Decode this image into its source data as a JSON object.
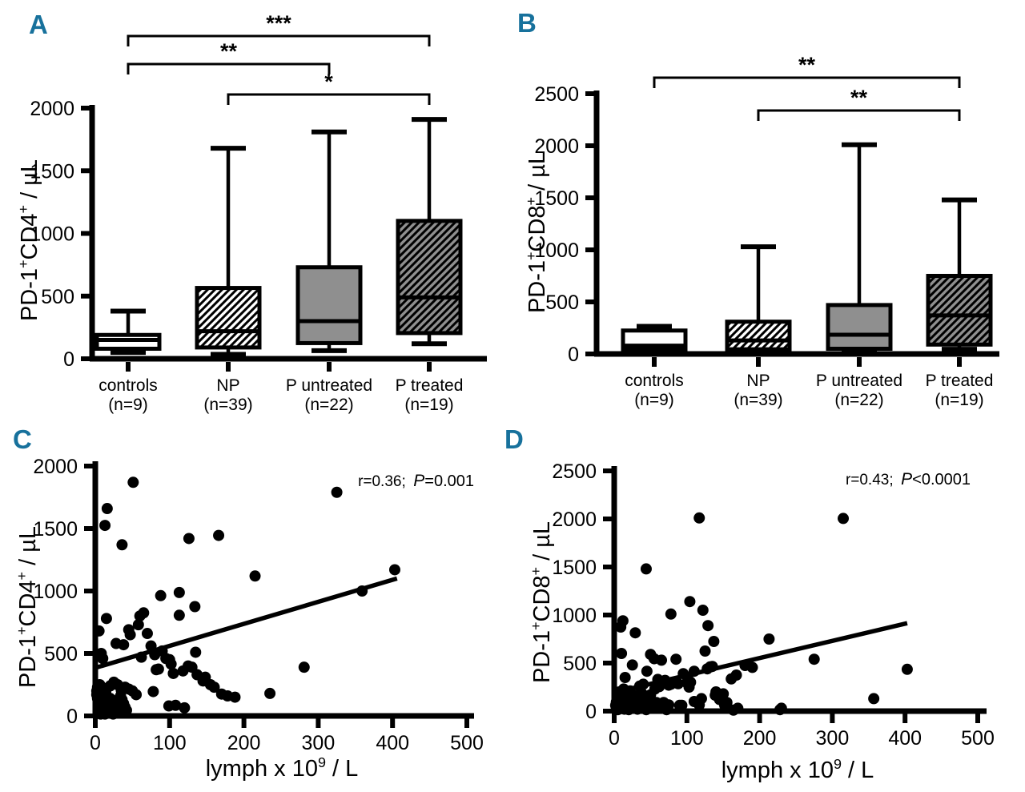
{
  "figure": {
    "background": "#ffffff",
    "ink": "#000000",
    "panel_label_color": "#17719c",
    "gray_fill": "#8f8f8f"
  },
  "chart_data": [
    {
      "panel_label": "A",
      "type": "box",
      "ylabel_parts": [
        {
          "t": "PD-1"
        },
        {
          "t": "+",
          "sup": true
        },
        {
          "t": "CD4"
        },
        {
          "t": "+",
          "sup": true
        },
        {
          "t": " / µL"
        }
      ],
      "ylim": [
        0,
        2000
      ],
      "yticks": [
        0,
        500,
        1000,
        1500,
        2000
      ],
      "groups": [
        {
          "name": "controls",
          "n_label": "(n=9)",
          "style": "open",
          "min": 50,
          "q1": 80,
          "median": 150,
          "q3": 190,
          "max": 380
        },
        {
          "name": "NP",
          "n_label": "(n=39)",
          "style": "hatch-open",
          "min": 35,
          "q1": 90,
          "median": 220,
          "q3": 565,
          "max": 1680
        },
        {
          "name": "P untreated",
          "n_label": "(n=22)",
          "style": "solid-gray",
          "min": 65,
          "q1": 125,
          "median": 300,
          "q3": 730,
          "max": 1810
        },
        {
          "name": "P treated",
          "n_label": "(n=19)",
          "style": "hatch-gray",
          "min": 120,
          "q1": 205,
          "median": 490,
          "q3": 1100,
          "max": 1910
        }
      ],
      "significance_brackets": [
        {
          "from": "controls",
          "to": "P treated",
          "label": "***"
        },
        {
          "from": "controls",
          "to": "P untreated",
          "label": "**"
        },
        {
          "from": "NP",
          "to": "P treated",
          "label": "*"
        }
      ]
    },
    {
      "panel_label": "B",
      "type": "box",
      "ylabel_parts": [
        {
          "t": "PD-1"
        },
        {
          "t": "+",
          "sup": true
        },
        {
          "t": "CD8"
        },
        {
          "t": "+",
          "sup": true
        },
        {
          "t": " / µL"
        }
      ],
      "ylim": [
        0,
        2500
      ],
      "yticks": [
        0,
        500,
        1000,
        1500,
        2000,
        2500
      ],
      "groups": [
        {
          "name": "controls",
          "n_label": "(n=9)",
          "style": "open",
          "min": 15,
          "q1": 45,
          "median": 80,
          "q3": 225,
          "max": 265
        },
        {
          "name": "NP",
          "n_label": "(n=39)",
          "style": "hatch-open",
          "min": 10,
          "q1": 45,
          "median": 130,
          "q3": 310,
          "max": 1030
        },
        {
          "name": "P untreated",
          "n_label": "(n=22)",
          "style": "solid-gray",
          "min": 15,
          "q1": 50,
          "median": 185,
          "q3": 470,
          "max": 2010
        },
        {
          "name": "P treated",
          "n_label": "(n=19)",
          "style": "hatch-gray",
          "min": 45,
          "q1": 90,
          "median": 370,
          "q3": 750,
          "max": 1480
        }
      ],
      "significance_brackets": [
        {
          "from": "controls",
          "to": "P treated",
          "label": "**"
        },
        {
          "from": "NP",
          "to": "P treated",
          "label": "**"
        }
      ]
    },
    {
      "panel_label": "C",
      "type": "scatter",
      "ylabel_parts": [
        {
          "t": "PD-1"
        },
        {
          "t": "+",
          "sup": true
        },
        {
          "t": "CD4"
        },
        {
          "t": "+",
          "sup": true
        },
        {
          "t": " / µL"
        }
      ],
      "xlabel_parts": [
        {
          "t": "lymph x 10"
        },
        {
          "t": "9",
          "sup": true
        },
        {
          "t": " / L"
        }
      ],
      "xlim": [
        0,
        500
      ],
      "xticks": [
        0,
        100,
        200,
        300,
        400,
        500
      ],
      "ylim": [
        0,
        2000
      ],
      "yticks": [
        0,
        500,
        1000,
        1500,
        2000
      ],
      "annotation": {
        "r_text": "r=0.36;",
        "p_var": "P",
        "p_value": "=0.001"
      },
      "regression_line": {
        "x1": 3,
        "y1": 390,
        "x2": 406,
        "y2": 1100
      },
      "points": [
        [
          2,
          200
        ],
        [
          2,
          170
        ],
        [
          3,
          230
        ],
        [
          3,
          140
        ],
        [
          4,
          110
        ],
        [
          5,
          680
        ],
        [
          5,
          85
        ],
        [
          5,
          55
        ],
        [
          6,
          250
        ],
        [
          6,
          30
        ],
        [
          7,
          15
        ],
        [
          8,
          500
        ],
        [
          8,
          230
        ],
        [
          9,
          130
        ],
        [
          10,
          460
        ],
        [
          10,
          95
        ],
        [
          11,
          60
        ],
        [
          12,
          35
        ],
        [
          13,
          1525
        ],
        [
          13,
          15
        ],
        [
          14,
          190
        ],
        [
          15,
          780
        ],
        [
          15,
          150
        ],
        [
          16,
          1660
        ],
        [
          16,
          115
        ],
        [
          17,
          80
        ],
        [
          18,
          50
        ],
        [
          19,
          25
        ],
        [
          20,
          240
        ],
        [
          20,
          140
        ],
        [
          21,
          100
        ],
        [
          22,
          70
        ],
        [
          23,
          40
        ],
        [
          24,
          15
        ],
        [
          25,
          270
        ],
        [
          26,
          120
        ],
        [
          28,
          580
        ],
        [
          28,
          85
        ],
        [
          30,
          250
        ],
        [
          30,
          55
        ],
        [
          32,
          25
        ],
        [
          34,
          160
        ],
        [
          35,
          205
        ],
        [
          36,
          1370
        ],
        [
          36,
          130
        ],
        [
          38,
          570
        ],
        [
          38,
          100
        ],
        [
          40,
          230
        ],
        [
          40,
          70
        ],
        [
          42,
          45
        ],
        [
          45,
          690
        ],
        [
          45,
          215
        ],
        [
          47,
          650
        ],
        [
          50,
          200
        ],
        [
          51,
          1870
        ],
        [
          55,
          170
        ],
        [
          58,
          730
        ],
        [
          60,
          800
        ],
        [
          62,
          470
        ],
        [
          65,
          825
        ],
        [
          70,
          660
        ],
        [
          75,
          560
        ],
        [
          78,
          195
        ],
        [
          80,
          490
        ],
        [
          82,
          370
        ],
        [
          85,
          375
        ],
        [
          88,
          963
        ],
        [
          90,
          520
        ],
        [
          95,
          460
        ],
        [
          99,
          80
        ],
        [
          100,
          450
        ],
        [
          102,
          415
        ],
        [
          105,
          340
        ],
        [
          108,
          85
        ],
        [
          113,
          988
        ],
        [
          113,
          806
        ],
        [
          118,
          360
        ],
        [
          120,
          65
        ],
        [
          125,
          400
        ],
        [
          126,
          1420
        ],
        [
          130,
          390
        ],
        [
          134,
          875
        ],
        [
          135,
          510
        ],
        [
          137,
          330
        ],
        [
          145,
          280
        ],
        [
          148,
          310
        ],
        [
          155,
          250
        ],
        [
          160,
          230
        ],
        [
          166,
          1445
        ],
        [
          170,
          175
        ],
        [
          178,
          160
        ],
        [
          188,
          150
        ],
        [
          215,
          1120
        ],
        [
          235,
          180
        ],
        [
          281,
          390
        ],
        [
          325,
          1790
        ],
        [
          359,
          1000
        ],
        [
          403,
          1170
        ]
      ]
    },
    {
      "panel_label": "D",
      "type": "scatter",
      "ylabel_parts": [
        {
          "t": "PD-1"
        },
        {
          "t": "+",
          "sup": true
        },
        {
          "t": "CD8"
        },
        {
          "t": "+",
          "sup": true
        },
        {
          "t": " / µL"
        }
      ],
      "xlabel_parts": [
        {
          "t": "lymph x 10"
        },
        {
          "t": "9",
          "sup": true
        },
        {
          "t": " / L"
        }
      ],
      "xlim": [
        0,
        500
      ],
      "xticks": [
        0,
        100,
        200,
        300,
        400,
        500
      ],
      "ylim": [
        0,
        2500
      ],
      "yticks": [
        0,
        500,
        1000,
        1500,
        2000,
        2500
      ],
      "annotation": {
        "r_text": "r=0.43;",
        "p_var": "P",
        "p_value": "<0.0001"
      },
      "regression_line": {
        "x1": 20,
        "y1": 230,
        "x2": 403,
        "y2": 915
      },
      "points": [
        [
          2,
          60
        ],
        [
          3,
          30
        ],
        [
          3,
          95
        ],
        [
          4,
          150
        ],
        [
          5,
          15
        ],
        [
          5,
          120
        ],
        [
          6,
          45
        ],
        [
          7,
          200
        ],
        [
          8,
          75
        ],
        [
          8,
          25
        ],
        [
          9,
          875
        ],
        [
          10,
          600
        ],
        [
          10,
          170
        ],
        [
          11,
          105
        ],
        [
          12,
          940
        ],
        [
          12,
          60
        ],
        [
          13,
          230
        ],
        [
          14,
          20
        ],
        [
          15,
          350
        ],
        [
          15,
          140
        ],
        [
          16,
          85
        ],
        [
          17,
          40
        ],
        [
          18,
          180
        ],
        [
          19,
          110
        ],
        [
          20,
          15
        ],
        [
          21,
          65
        ],
        [
          22,
          210
        ],
        [
          23,
          130
        ],
        [
          24,
          35
        ],
        [
          25,
          480
        ],
        [
          26,
          90
        ],
        [
          28,
          160
        ],
        [
          29,
          815
        ],
        [
          30,
          55
        ],
        [
          32,
          20
        ],
        [
          33,
          120
        ],
        [
          35,
          260
        ],
        [
          36,
          75
        ],
        [
          38,
          185
        ],
        [
          40,
          280
        ],
        [
          40,
          40
        ],
        [
          42,
          140
        ],
        [
          44,
          1480
        ],
        [
          44,
          15
        ],
        [
          45,
          415
        ],
        [
          46,
          100
        ],
        [
          48,
          60
        ],
        [
          50,
          590
        ],
        [
          50,
          170
        ],
        [
          52,
          30
        ],
        [
          55,
          545
        ],
        [
          56,
          230
        ],
        [
          58,
          90
        ],
        [
          60,
          330
        ],
        [
          62,
          255
        ],
        [
          63,
          40
        ],
        [
          65,
          530
        ],
        [
          68,
          90
        ],
        [
          70,
          320
        ],
        [
          72,
          15
        ],
        [
          75,
          270
        ],
        [
          75,
          65
        ],
        [
          78,
          1010
        ],
        [
          78,
          280
        ],
        [
          80,
          300
        ],
        [
          85,
          540
        ],
        [
          88,
          285
        ],
        [
          90,
          60
        ],
        [
          93,
          60
        ],
        [
          95,
          390
        ],
        [
          100,
          295
        ],
        [
          101,
          350
        ],
        [
          103,
          250
        ],
        [
          104,
          1140
        ],
        [
          105,
          300
        ],
        [
          110,
          415
        ],
        [
          110,
          100
        ],
        [
          115,
          90
        ],
        [
          117,
          2010
        ],
        [
          117,
          65
        ],
        [
          120,
          130
        ],
        [
          122,
          1050
        ],
        [
          125,
          625
        ],
        [
          128,
          440
        ],
        [
          129,
          890
        ],
        [
          132,
          460
        ],
        [
          135,
          465
        ],
        [
          137,
          725
        ],
        [
          139,
          165
        ],
        [
          140,
          200
        ],
        [
          145,
          120
        ],
        [
          150,
          180
        ],
        [
          152,
          60
        ],
        [
          155,
          90
        ],
        [
          161,
          335
        ],
        [
          164,
          10
        ],
        [
          168,
          375
        ],
        [
          170,
          30
        ],
        [
          180,
          475
        ],
        [
          190,
          455
        ],
        [
          213,
          750
        ],
        [
          228,
          15
        ],
        [
          230,
          30
        ],
        [
          275,
          540
        ],
        [
          315,
          2005
        ],
        [
          357,
          130
        ],
        [
          403,
          435
        ]
      ]
    }
  ]
}
